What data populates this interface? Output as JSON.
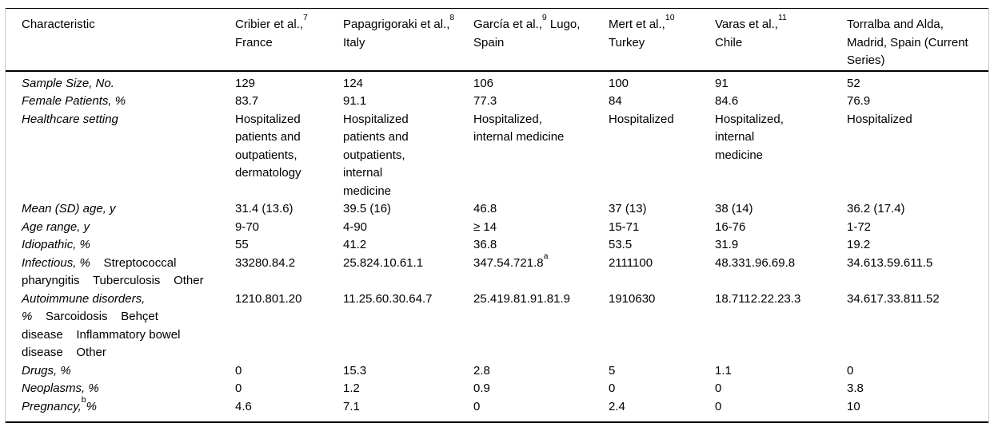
{
  "table": {
    "header": {
      "cells": [
        {
          "text": "Characteristic",
          "sup": "",
          "post": ""
        },
        {
          "text": "Cribier et al.,",
          "sup": "7",
          "post": " France"
        },
        {
          "text": "Papagrigoraki et al.,",
          "sup": "8",
          "post": " Italy"
        },
        {
          "text": "García et al.,",
          "sup": "9",
          "post": " Lugo, Spain"
        },
        {
          "text": "Mert et al.,",
          "sup": "10",
          "post": " Turkey"
        },
        {
          "text": "Varas et al.,",
          "sup": "11",
          "post": " Chile"
        },
        {
          "text": "Torralba and Alda, Madrid, Spain (Current Series)",
          "sup": "",
          "post": ""
        }
      ]
    },
    "rows": [
      {
        "label": [
          {
            "text": "Sample Size, No.",
            "italic": true
          }
        ],
        "values": [
          "129",
          "124",
          "106",
          "100",
          "91",
          "52"
        ]
      },
      {
        "label": [
          {
            "text": "Female Patients, %",
            "italic": true
          }
        ],
        "values": [
          "83.7",
          "91.1",
          "77.3",
          "84",
          "84.6",
          "76.9"
        ]
      },
      {
        "label": [
          {
            "text": "Healthcare setting",
            "italic": true
          }
        ],
        "values": [
          "Hospitalized\npatients and\noutpatients,\ndermatology",
          "Hospitalized\npatients and\noutpatients,\ninternal\nmedicine",
          "Hospitalized,\ninternal medicine",
          "Hospitalized",
          "Hospitalized,\ninternal\nmedicine",
          "Hospitalized"
        ]
      },
      {
        "label": [
          {
            "text": "Mean (SD) age, y",
            "italic": true
          }
        ],
        "values": [
          "31.4 (13.6)",
          "39.5 (16)",
          "46.8",
          "37 (13)",
          "38 (14)",
          "36.2 (17.4)"
        ]
      },
      {
        "label": [
          {
            "text": "Age range, y",
            "italic": true
          }
        ],
        "values": [
          "9-70",
          "4-90",
          "≥ 14",
          "15-71",
          "16-76",
          "1-72"
        ]
      },
      {
        "label": [
          {
            "text": "Idiopathic, %",
            "italic": true
          }
        ],
        "values": [
          "55",
          "41.2",
          "36.8",
          "53.5",
          "31.9",
          "19.2"
        ]
      },
      {
        "label": [
          {
            "text": "Infectious, %",
            "italic": true
          },
          {
            "text": "    Streptococcal\npharyngitis    Tuberculosis    Other",
            "italic": false
          }
        ],
        "values": [
          "33280.84.2",
          "25.824.10.61.1",
          "347.54.721.8",
          "2111100",
          "48.331.96.69.8",
          "34.613.59.611.5"
        ],
        "value_sups": {
          "2": "a"
        }
      },
      {
        "label": [
          {
            "text": "Autoimmune disorders,\n%",
            "italic": true
          },
          {
            "text": "    Sarcoidosis    Behçet\ndisease    Inflammatory bowel\ndisease    Other",
            "italic": false
          }
        ],
        "values": [
          "1210.801.20",
          "11.25.60.30.64.7",
          "25.419.81.91.81.9",
          "1910630",
          "18.7112.22.23.3",
          "34.617.33.811.52"
        ]
      },
      {
        "label": [
          {
            "text": "Drugs, %",
            "italic": true
          }
        ],
        "values": [
          "0",
          "15.3",
          "2.8",
          "5",
          "1.1",
          "0"
        ]
      },
      {
        "label": [
          {
            "text": "Neoplasms, %",
            "italic": true
          }
        ],
        "values": [
          "0",
          "1.2",
          "0.9",
          "0",
          "0",
          "3.8"
        ]
      },
      {
        "label": [
          {
            "text": "Pregnancy,",
            "italic": true
          },
          {
            "text": "b",
            "sup": true
          },
          {
            "text": "%",
            "italic": true
          }
        ],
        "values": [
          "4.6",
          "7.1",
          "0",
          "2.4",
          "0",
          "10"
        ]
      }
    ]
  }
}
